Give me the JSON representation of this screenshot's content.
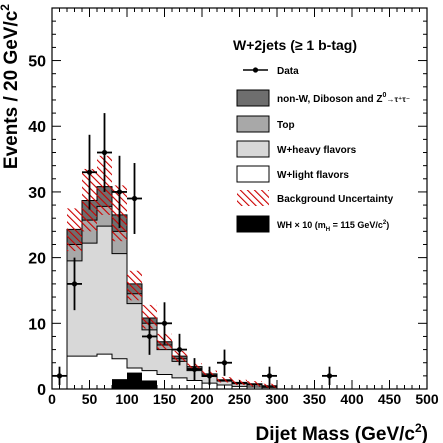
{
  "chart_data": {
    "type": "bar",
    "title": "",
    "xlabel": "Dijet Mass (GeV/c",
    "xlabel_sup": "2",
    "xlabel_close": ")",
    "ylabel": "Events / 20 GeV/c",
    "ylabel_sup": "2",
    "xlim": [
      0,
      500
    ],
    "ylim": [
      0,
      58
    ],
    "xticks": [
      0,
      50,
      100,
      150,
      200,
      250,
      300,
      350,
      400,
      450,
      500
    ],
    "yticks": [
      0,
      10,
      20,
      30,
      40,
      50
    ],
    "bin_edges": [
      20,
      40,
      60,
      80,
      100,
      120,
      140,
      160,
      180,
      200,
      220,
      240,
      260,
      280,
      300
    ],
    "series": [
      {
        "name": "W+light flavors",
        "values": [
          5.0,
          5.0,
          5.3,
          4.6,
          3.2,
          2.8,
          2.2,
          1.7,
          1.3,
          0.9,
          0.6,
          0.4,
          0.3,
          0.2
        ]
      },
      {
        "name": "W+heavy flavors",
        "values": [
          14.5,
          17.2,
          19.5,
          16.0,
          9.8,
          6.2,
          3.8,
          2.5,
          1.5,
          1.0,
          0.6,
          0.4,
          0.3,
          0.2
        ]
      },
      {
        "name": "Top",
        "values": [
          2.5,
          3.5,
          3.0,
          3.4,
          1.5,
          1.0,
          0.7,
          0.4,
          0.3,
          0.2,
          0.1,
          0.1,
          0.1,
          0.0
        ]
      },
      {
        "name": "non-W, Diboson and Z",
        "values": [
          2.3,
          3.0,
          3.0,
          2.5,
          1.5,
          0.8,
          0.5,
          0.4,
          0.3,
          0.2,
          0.1,
          0.1,
          0.1,
          0.1
        ]
      }
    ],
    "uncertainty_lo": [
      21.0,
      24.0,
      26.5,
      22.5,
      13.5,
      9.2,
      6.0,
      4.2,
      2.9,
      1.8,
      1.0,
      0.6,
      0.4,
      0.2
    ],
    "uncertainty_hi": [
      27.5,
      33.5,
      35.5,
      31.0,
      18.0,
      12.8,
      8.4,
      5.8,
      3.9,
      2.8,
      1.8,
      1.4,
      1.2,
      0.8
    ],
    "signal": {
      "name": "WH",
      "edges": [
        80,
        100,
        120,
        140
      ],
      "values": [
        1.5,
        2.5,
        1.3
      ]
    },
    "data_points": [
      {
        "x": 10,
        "y": 2,
        "err": 1.4
      },
      {
        "x": 30,
        "y": 16,
        "err": 4
      },
      {
        "x": 50,
        "y": 33,
        "err": 5.7
      },
      {
        "x": 70,
        "y": 36,
        "err": 6
      },
      {
        "x": 90,
        "y": 30,
        "err": 5.5
      },
      {
        "x": 110,
        "y": 29,
        "err": 5.4
      },
      {
        "x": 130,
        "y": 8,
        "err": 2.8
      },
      {
        "x": 150,
        "y": 10,
        "err": 3.2
      },
      {
        "x": 170,
        "y": 6,
        "err": 2.4
      },
      {
        "x": 190,
        "y": 3,
        "err": 1.7
      },
      {
        "x": 210,
        "y": 2,
        "err": 1.4
      },
      {
        "x": 230,
        "y": 4,
        "err": 2
      },
      {
        "x": 290,
        "y": 2,
        "err": 1.4
      },
      {
        "x": 370,
        "y": 2,
        "err": 1.4
      }
    ],
    "legend": {
      "header": "W+2jets (≥ 1 b-tag)",
      "placement": "top-right",
      "entries": [
        {
          "key": "data",
          "label": "Data"
        },
        {
          "key": "nonw",
          "label": "non-W, Diboson and Z",
          "sup": "0",
          "tail": "→τ⁺τ⁻"
        },
        {
          "key": "top",
          "label": "Top"
        },
        {
          "key": "heavy",
          "label": "W+heavy flavors"
        },
        {
          "key": "light",
          "label": "W+light flavors"
        },
        {
          "key": "unc",
          "label": "Background Uncertainty"
        },
        {
          "key": "wh",
          "label": "WH × 10 (m",
          "sub": "H",
          "tail": " = 115 GeV/c",
          "sup": "2",
          "close": ")"
        }
      ]
    },
    "colors": {
      "nonw": "#6e6e6e",
      "top": "#a8a8a8",
      "heavy": "#d8d8d8",
      "light": "#ffffff",
      "uncertainty": "#cc0000",
      "signal": "#000000",
      "data": "#000000"
    }
  }
}
